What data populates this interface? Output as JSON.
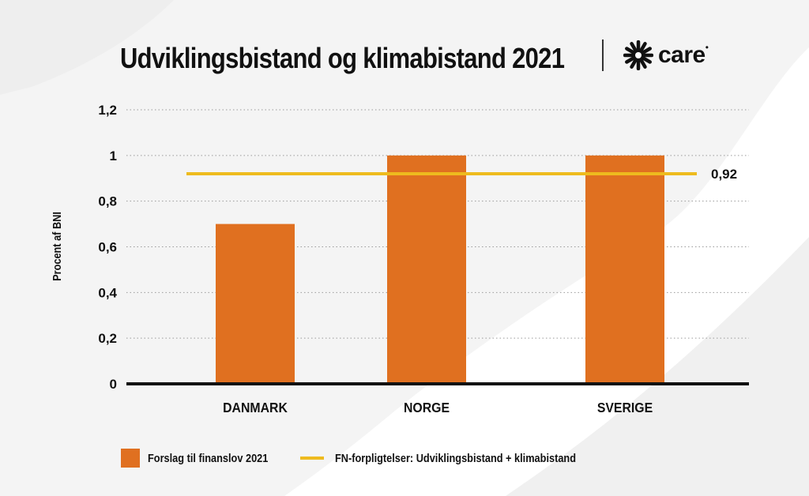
{
  "title": "Udviklingsbistand og klimabistand 2021",
  "logo": {
    "text": "care",
    "icon": "care-starburst-icon"
  },
  "chart_data": {
    "type": "bar",
    "title": "Udviklingsbistand og klimabistand 2021",
    "ylabel": "Procent  af BNI",
    "xlabel": "",
    "categories": [
      "DANMARK",
      "NORGE",
      "SVERIGE"
    ],
    "series": [
      {
        "name": "Forslag til finanslov 2021",
        "values": [
          0.7,
          1.0,
          1.0
        ],
        "color": "#e07020"
      }
    ],
    "reference_line": {
      "name": "FN-forpligtelser: Udviklingsbistand + klimabistand",
      "value": 0.92,
      "label": "0,92",
      "color": "#eebb1e"
    },
    "ylim": [
      0,
      1.2
    ],
    "yticks": [
      0,
      0.2,
      0.4,
      0.6,
      0.8,
      1,
      1.2
    ],
    "ytick_labels": [
      "0",
      "0,2",
      "0,4",
      "0,6",
      "0,8",
      "1",
      "1,2"
    ],
    "grid": true,
    "legend_position": "bottom"
  },
  "legend": {
    "bar_label": "Forslag til finanslov 2021",
    "line_label": "FN-forpligtelser: Udviklingsbistand + klimabistand"
  }
}
